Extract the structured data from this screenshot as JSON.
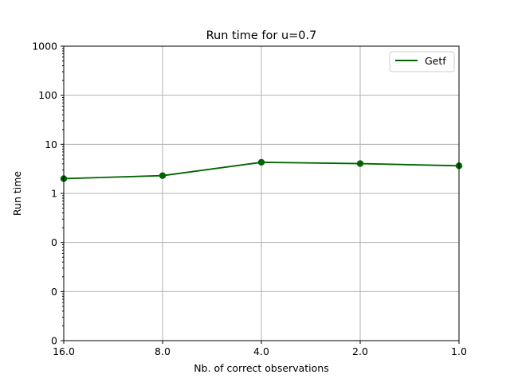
{
  "chart_data": {
    "type": "line",
    "title": "Run time for u=0.7",
    "xlabel": "Nb. of correct observations",
    "ylabel": "Run time",
    "x_scale": "log2-reversed",
    "y_scale": "log",
    "x_ticks": [
      16,
      8,
      4,
      2,
      1
    ],
    "x_tick_labels": [
      "16.0",
      "8.0",
      "4.0",
      "2.0",
      "1.0"
    ],
    "y_ticks": [
      0.001,
      0.01,
      0.1,
      1,
      10,
      100,
      1000
    ],
    "y_tick_labels": [
      "0",
      "0",
      "0",
      "1",
      "10",
      "100",
      "1000"
    ],
    "xlim": [
      16,
      1
    ],
    "ylim": [
      0.001,
      1000
    ],
    "grid": true,
    "legend_position": "upper-right",
    "series": [
      {
        "name": "Getf",
        "color": "#006400",
        "x": [
          16,
          8,
          4,
          2,
          1
        ],
        "y": [
          2.0,
          2.3,
          4.3,
          4.05,
          3.65
        ]
      }
    ]
  }
}
